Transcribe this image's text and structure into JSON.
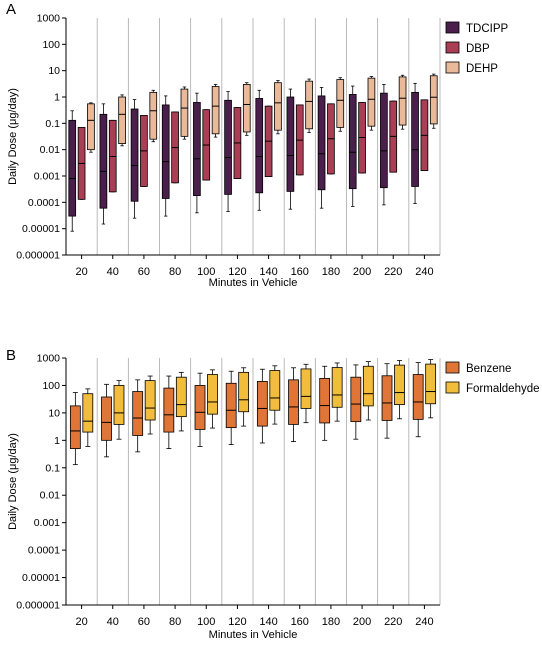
{
  "panels": [
    {
      "letter": "A"
    },
    {
      "letter": "B"
    }
  ],
  "chart_data": [
    {
      "type": "boxplot",
      "panel": "A",
      "xlabel": "Minutes in Vehicle",
      "ylabel": "Daily Dose (μg/day)",
      "yscale": "log",
      "ylim": [
        1e-06,
        1000
      ],
      "yticks": [
        "0.000001",
        "0.00001",
        "0.0001",
        "0.001",
        "0.01",
        "0.1",
        "1",
        "10",
        "100",
        "1000"
      ],
      "categories": [
        "20",
        "40",
        "60",
        "80",
        "100",
        "120",
        "140",
        "160",
        "180",
        "200",
        "220",
        "240"
      ],
      "legend_position": "top-right",
      "grid": "vertical separators",
      "series": [
        {
          "name": "TDCIPP",
          "color": "#4a1f4b",
          "boxes": [
            {
              "min": 8e-06,
              "q1": 3e-05,
              "median": 0.0008,
              "q3": 0.13,
              "max": 0.3
            },
            {
              "min": 1.5e-05,
              "q1": 6e-05,
              "median": 0.0015,
              "q3": 0.22,
              "max": 0.55
            },
            {
              "min": 2.5e-05,
              "q1": 0.00011,
              "median": 0.0025,
              "q3": 0.35,
              "max": 0.8
            },
            {
              "min": 3e-05,
              "q1": 0.00014,
              "median": 0.0035,
              "q3": 0.5,
              "max": 1.1
            },
            {
              "min": 4e-05,
              "q1": 0.00018,
              "median": 0.0045,
              "q3": 0.62,
              "max": 1.4
            },
            {
              "min": 4.5e-05,
              "q1": 0.0002,
              "median": 0.005,
              "q3": 0.75,
              "max": 1.6
            },
            {
              "min": 5e-05,
              "q1": 0.00023,
              "median": 0.0055,
              "q3": 0.88,
              "max": 1.8
            },
            {
              "min": 5.5e-05,
              "q1": 0.00026,
              "median": 0.006,
              "q3": 1.0,
              "max": 2.0
            },
            {
              "min": 6e-05,
              "q1": 0.0003,
              "median": 0.007,
              "q3": 1.1,
              "max": 2.3
            },
            {
              "min": 7e-05,
              "q1": 0.00033,
              "median": 0.008,
              "q3": 1.25,
              "max": 2.6
            },
            {
              "min": 8e-05,
              "q1": 0.00036,
              "median": 0.009,
              "q3": 1.4,
              "max": 3.0
            },
            {
              "min": 9e-05,
              "q1": 0.0004,
              "median": 0.01,
              "q3": 1.5,
              "max": 3.3
            }
          ]
        },
        {
          "name": "DBP",
          "color": "#a93e55",
          "boxes": [
            {
              "min": 0.00013,
              "q1": 0.00013,
              "median": 0.003,
              "q3": 0.07,
              "max": 0.07
            },
            {
              "min": 0.00025,
              "q1": 0.00025,
              "median": 0.0055,
              "q3": 0.13,
              "max": 0.13
            },
            {
              "min": 0.0004,
              "q1": 0.0004,
              "median": 0.009,
              "q3": 0.2,
              "max": 0.2
            },
            {
              "min": 0.00055,
              "q1": 0.00055,
              "median": 0.012,
              "q3": 0.27,
              "max": 0.27
            },
            {
              "min": 0.0007,
              "q1": 0.0007,
              "median": 0.015,
              "q3": 0.33,
              "max": 0.33
            },
            {
              "min": 0.0008,
              "q1": 0.0008,
              "median": 0.018,
              "q3": 0.4,
              "max": 0.4
            },
            {
              "min": 0.00095,
              "q1": 0.00095,
              "median": 0.021,
              "q3": 0.45,
              "max": 0.45
            },
            {
              "min": 0.0011,
              "q1": 0.0011,
              "median": 0.023,
              "q3": 0.5,
              "max": 0.5
            },
            {
              "min": 0.0012,
              "q1": 0.0012,
              "median": 0.026,
              "q3": 0.55,
              "max": 0.55
            },
            {
              "min": 0.0013,
              "q1": 0.0013,
              "median": 0.029,
              "q3": 0.62,
              "max": 0.62
            },
            {
              "min": 0.0014,
              "q1": 0.0014,
              "median": 0.032,
              "q3": 0.7,
              "max": 0.7
            },
            {
              "min": 0.0016,
              "q1": 0.0016,
              "median": 0.035,
              "q3": 0.78,
              "max": 0.78
            }
          ]
        },
        {
          "name": "DEHP",
          "color": "#e9b99a",
          "boxes": [
            {
              "min": 0.008,
              "q1": 0.01,
              "median": 0.13,
              "q3": 0.55,
              "max": 0.6
            },
            {
              "min": 0.014,
              "q1": 0.017,
              "median": 0.22,
              "q3": 1.0,
              "max": 1.2
            },
            {
              "min": 0.02,
              "q1": 0.025,
              "median": 0.3,
              "q3": 1.5,
              "max": 1.8
            },
            {
              "min": 0.025,
              "q1": 0.032,
              "median": 0.38,
              "q3": 2.0,
              "max": 2.4
            },
            {
              "min": 0.03,
              "q1": 0.04,
              "median": 0.45,
              "q3": 2.5,
              "max": 3.0
            },
            {
              "min": 0.035,
              "q1": 0.047,
              "median": 0.52,
              "q3": 3.0,
              "max": 3.5
            },
            {
              "min": 0.04,
              "q1": 0.055,
              "median": 0.6,
              "q3": 3.5,
              "max": 4.2
            },
            {
              "min": 0.045,
              "q1": 0.062,
              "median": 0.68,
              "q3": 4.0,
              "max": 4.8
            },
            {
              "min": 0.05,
              "q1": 0.07,
              "median": 0.75,
              "q3": 4.6,
              "max": 5.4
            },
            {
              "min": 0.055,
              "q1": 0.078,
              "median": 0.82,
              "q3": 5.2,
              "max": 6.0
            },
            {
              "min": 0.06,
              "q1": 0.086,
              "median": 0.9,
              "q3": 5.8,
              "max": 6.7
            },
            {
              "min": 0.065,
              "q1": 0.095,
              "median": 0.98,
              "q3": 6.4,
              "max": 7.4
            }
          ]
        }
      ]
    },
    {
      "type": "boxplot",
      "panel": "B",
      "xlabel": "Minutes in Vehicle",
      "ylabel": "Daily Dose (μg/day)",
      "yscale": "log",
      "ylim": [
        1e-06,
        1000
      ],
      "yticks": [
        "0.000001",
        "0.00001",
        "0.0001",
        "0.001",
        "0.01",
        "0.1",
        "1",
        "10",
        "100",
        "1000"
      ],
      "categories": [
        "20",
        "40",
        "60",
        "80",
        "100",
        "120",
        "140",
        "160",
        "180",
        "200",
        "220",
        "240"
      ],
      "legend_position": "top-right",
      "grid": "vertical separators",
      "series": [
        {
          "name": "Benzene",
          "color": "#e07538",
          "boxes": [
            {
              "min": 0.13,
              "q1": 0.5,
              "median": 2.2,
              "q3": 18,
              "max": 55
            },
            {
              "min": 0.25,
              "q1": 1.0,
              "median": 4.5,
              "q3": 38,
              "max": 110
            },
            {
              "min": 0.38,
              "q1": 1.5,
              "median": 6.5,
              "q3": 60,
              "max": 160
            },
            {
              "min": 0.5,
              "q1": 2.0,
              "median": 8.5,
              "q3": 80,
              "max": 220
            },
            {
              "min": 0.6,
              "q1": 2.5,
              "median": 10.5,
              "q3": 100,
              "max": 280
            },
            {
              "min": 0.7,
              "q1": 2.9,
              "median": 12.5,
              "q3": 120,
              "max": 330
            },
            {
              "min": 0.8,
              "q1": 3.3,
              "median": 14.5,
              "q3": 140,
              "max": 390
            },
            {
              "min": 0.9,
              "q1": 3.8,
              "median": 16.5,
              "q3": 160,
              "max": 440
            },
            {
              "min": 1.0,
              "q1": 4.3,
              "median": 18.5,
              "q3": 180,
              "max": 500
            },
            {
              "min": 1.1,
              "q1": 4.8,
              "median": 21,
              "q3": 200,
              "max": 560
            },
            {
              "min": 1.2,
              "q1": 5.3,
              "median": 23,
              "q3": 225,
              "max": 620
            },
            {
              "min": 1.35,
              "q1": 5.8,
              "median": 25,
              "q3": 250,
              "max": 680
            }
          ]
        },
        {
          "name": "Formaldehyde",
          "color": "#f2bd3c",
          "boxes": [
            {
              "min": 0.6,
              "q1": 2.0,
              "median": 5.0,
              "q3": 50,
              "max": 75
            },
            {
              "min": 1.1,
              "q1": 3.8,
              "median": 10,
              "q3": 100,
              "max": 150
            },
            {
              "min": 1.7,
              "q1": 5.5,
              "median": 15,
              "q3": 150,
              "max": 220
            },
            {
              "min": 2.2,
              "q1": 7.3,
              "median": 20,
              "q3": 200,
              "max": 300
            },
            {
              "min": 2.8,
              "q1": 9.0,
              "median": 25,
              "q3": 250,
              "max": 370
            },
            {
              "min": 3.3,
              "q1": 11,
              "median": 30,
              "q3": 300,
              "max": 440
            },
            {
              "min": 3.9,
              "q1": 12.5,
              "median": 35,
              "q3": 350,
              "max": 520
            },
            {
              "min": 4.4,
              "q1": 14.5,
              "median": 40,
              "q3": 400,
              "max": 590
            },
            {
              "min": 5.0,
              "q1": 16,
              "median": 45,
              "q3": 450,
              "max": 660
            },
            {
              "min": 5.5,
              "q1": 18,
              "median": 50,
              "q3": 500,
              "max": 740
            },
            {
              "min": 6.1,
              "q1": 20,
              "median": 55,
              "q3": 550,
              "max": 810
            },
            {
              "min": 6.6,
              "q1": 21.5,
              "median": 60,
              "q3": 600,
              "max": 880
            }
          ]
        }
      ]
    }
  ]
}
